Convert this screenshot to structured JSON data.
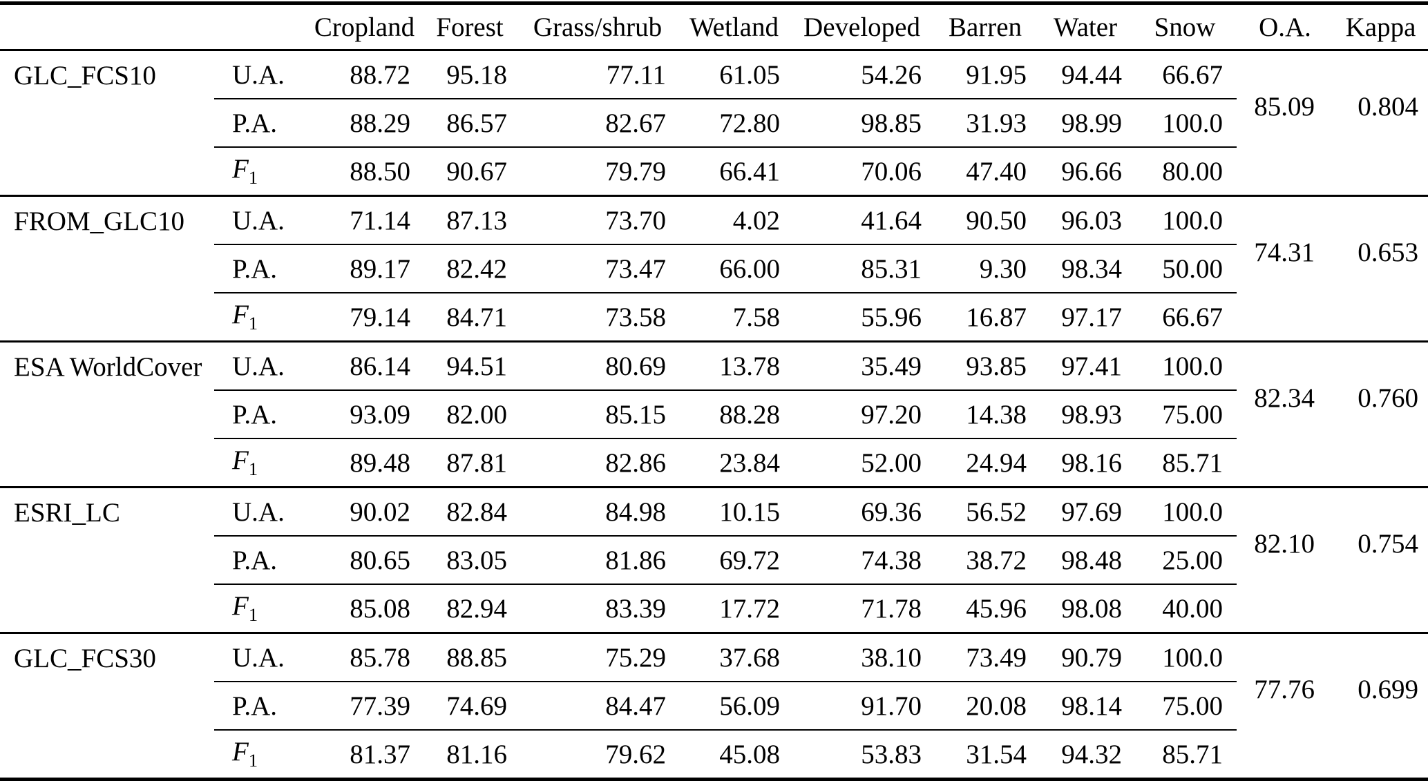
{
  "chart_data": {
    "type": "table",
    "category_headers": [
      "Cropland",
      "Forest",
      "Grass/shrub",
      "Wetland",
      "Developed",
      "Barren",
      "Water",
      "Snow"
    ],
    "summary_headers": [
      "O.A.",
      "Kappa"
    ],
    "metric_labels": [
      {
        "text": "U.A.",
        "sub": "",
        "italic": false
      },
      {
        "text": "P.A.",
        "sub": "",
        "italic": false
      },
      {
        "text": "F",
        "sub": "1",
        "italic": true
      }
    ],
    "products": [
      {
        "name": "GLC_FCS10",
        "UA": [
          "88.72",
          "95.18",
          "77.11",
          "61.05",
          "54.26",
          "91.95",
          "94.44",
          "66.67"
        ],
        "PA": [
          "88.29",
          "86.57",
          "82.67",
          "72.80",
          "98.85",
          "31.93",
          "98.99",
          "100.0"
        ],
        "F1": [
          "88.50",
          "90.67",
          "79.79",
          "66.41",
          "70.06",
          "47.40",
          "96.66",
          "80.00"
        ],
        "OA": "85.09",
        "Kappa": "0.804"
      },
      {
        "name": "FROM_GLC10",
        "UA": [
          "71.14",
          "87.13",
          "73.70",
          "4.02",
          "41.64",
          "90.50",
          "96.03",
          "100.0"
        ],
        "PA": [
          "89.17",
          "82.42",
          "73.47",
          "66.00",
          "85.31",
          "9.30",
          "98.34",
          "50.00"
        ],
        "F1": [
          "79.14",
          "84.71",
          "73.58",
          "7.58",
          "55.96",
          "16.87",
          "97.17",
          "66.67"
        ],
        "OA": "74.31",
        "Kappa": "0.653"
      },
      {
        "name": "ESA WorldCover",
        "UA": [
          "86.14",
          "94.51",
          "80.69",
          "13.78",
          "35.49",
          "93.85",
          "97.41",
          "100.0"
        ],
        "PA": [
          "93.09",
          "82.00",
          "85.15",
          "88.28",
          "97.20",
          "14.38",
          "98.93",
          "75.00"
        ],
        "F1": [
          "89.48",
          "87.81",
          "82.86",
          "23.84",
          "52.00",
          "24.94",
          "98.16",
          "85.71"
        ],
        "OA": "82.34",
        "Kappa": "0.760"
      },
      {
        "name": "ESRI_LC",
        "UA": [
          "90.02",
          "82.84",
          "84.98",
          "10.15",
          "69.36",
          "56.52",
          "97.69",
          "100.0"
        ],
        "PA": [
          "80.65",
          "83.05",
          "81.86",
          "69.72",
          "74.38",
          "38.72",
          "98.48",
          "25.00"
        ],
        "F1": [
          "85.08",
          "82.94",
          "83.39",
          "17.72",
          "71.78",
          "45.96",
          "98.08",
          "40.00"
        ],
        "OA": "82.10",
        "Kappa": "0.754"
      },
      {
        "name": "GLC_FCS30",
        "UA": [
          "85.78",
          "88.85",
          "75.29",
          "37.68",
          "38.10",
          "73.49",
          "90.79",
          "100.0"
        ],
        "PA": [
          "77.39",
          "74.69",
          "84.47",
          "56.09",
          "91.70",
          "20.08",
          "98.14",
          "75.00"
        ],
        "F1": [
          "81.37",
          "81.16",
          "79.62",
          "45.08",
          "53.83",
          "31.54",
          "94.32",
          "85.71"
        ],
        "OA": "77.76",
        "Kappa": "0.699"
      }
    ]
  }
}
